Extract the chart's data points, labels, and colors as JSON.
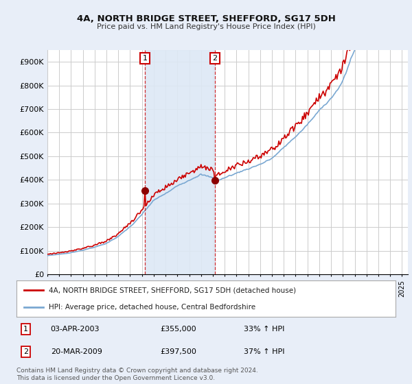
{
  "title": "4A, NORTH BRIDGE STREET, SHEFFORD, SG17 5DH",
  "subtitle": "Price paid vs. HM Land Registry's House Price Index (HPI)",
  "ylim": [
    0,
    950000
  ],
  "yticks": [
    0,
    100000,
    200000,
    300000,
    400000,
    500000,
    600000,
    700000,
    800000,
    900000
  ],
  "ytick_labels": [
    "£0",
    "£100K",
    "£200K",
    "£300K",
    "£400K",
    "£500K",
    "£600K",
    "£700K",
    "£800K",
    "£900K"
  ],
  "bg_color": "#e8eef8",
  "plot_bg_color": "#ffffff",
  "grid_color": "#cccccc",
  "red_line_color": "#cc0000",
  "blue_line_color": "#7aa8d2",
  "shade_color": "#dde8f5",
  "marker1_price": 355000,
  "marker2_price": 397500,
  "legend_entry1": "4A, NORTH BRIDGE STREET, SHEFFORD, SG17 5DH (detached house)",
  "legend_entry2": "HPI: Average price, detached house, Central Bedfordshire",
  "footnote": "Contains HM Land Registry data © Crown copyright and database right 2024.\nThis data is licensed under the Open Government Licence v3.0."
}
